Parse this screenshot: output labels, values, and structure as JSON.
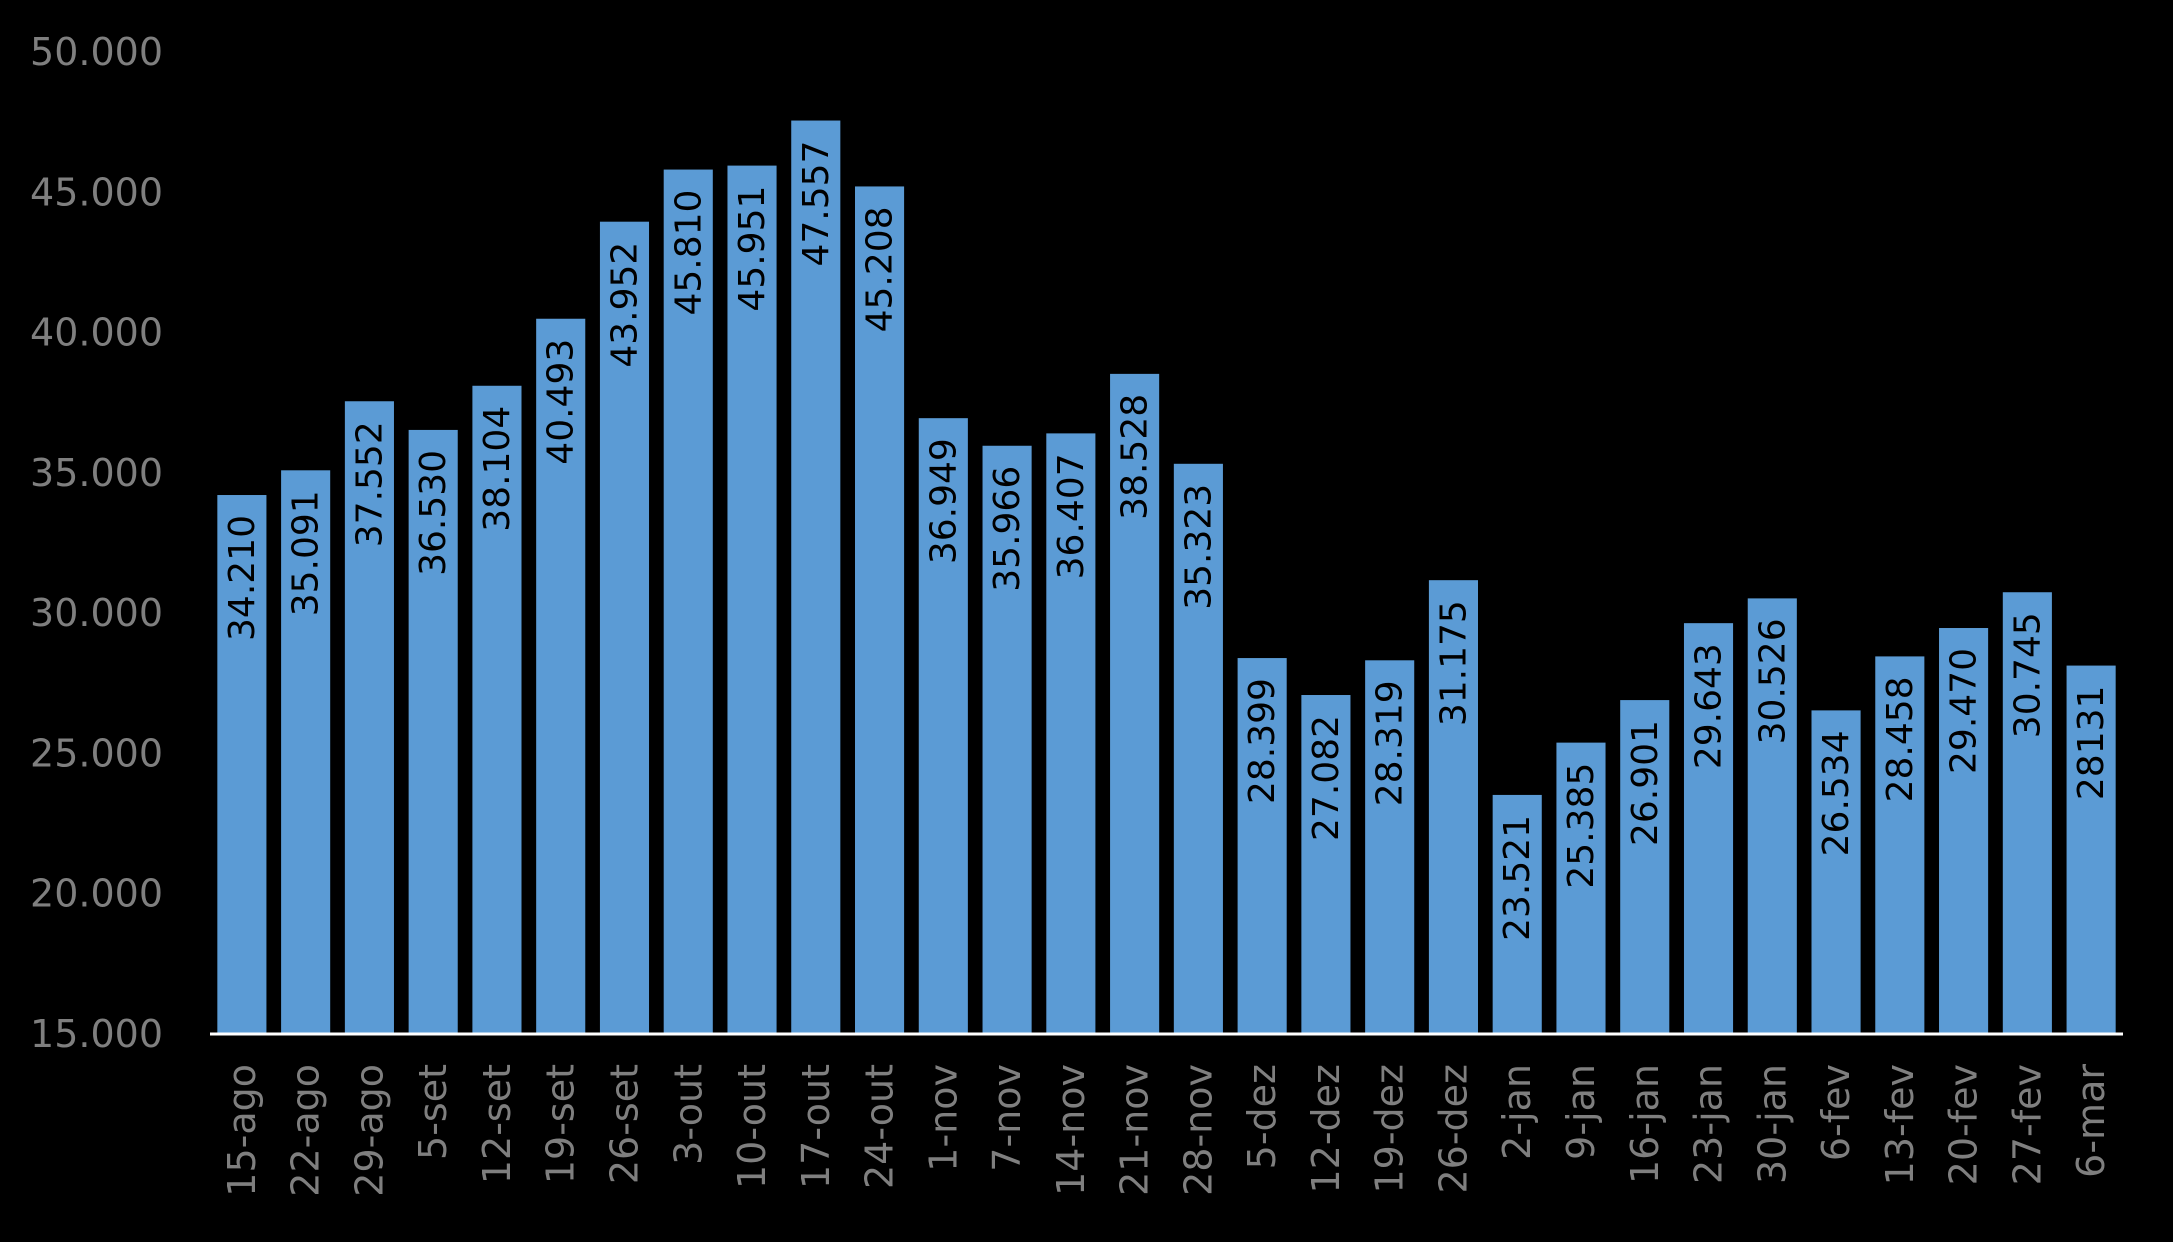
{
  "chart_data": {
    "type": "bar",
    "categories": [
      "15-ago",
      "22-ago",
      "29-ago",
      "5-set",
      "12-set",
      "19-set",
      "26-set",
      "3-out",
      "10-out",
      "17-out",
      "24-out",
      "1-nov",
      "7-nov",
      "14-nov",
      "21-nov",
      "28-nov",
      "5-dez",
      "12-dez",
      "19-dez",
      "26-dez",
      "2-jan",
      "9-jan",
      "16-jan",
      "23-jan",
      "30-jan",
      "6-fev",
      "13-fev",
      "20-fev",
      "27-fev",
      "6-mar"
    ],
    "values": [
      34210,
      35091,
      37552,
      36530,
      38104,
      40493,
      43952,
      45810,
      45951,
      47557,
      45208,
      36949,
      35966,
      36407,
      38528,
      35323,
      28399,
      27082,
      28319,
      31175,
      23521,
      25385,
      26901,
      29643,
      30526,
      26534,
      28458,
      29470,
      30745,
      28131
    ],
    "data_labels": [
      "34.210",
      "35.091",
      "37.552",
      "36.530",
      "38.104",
      "40.493",
      "43.952",
      "45.810",
      "45.951",
      "47.557",
      "45.208",
      "36.949",
      "35.966",
      "36.407",
      "38.528",
      "35.323",
      "28.399",
      "27.082",
      "28.319",
      "31.175",
      "23.521",
      "25.385",
      "26.901",
      "29.643",
      "30.526",
      "26.534",
      "28.458",
      "29.470",
      "30.745",
      "28131"
    ],
    "y_ticks": [
      "15.000",
      "20.000",
      "25.000",
      "30.000",
      "35.000",
      "40.000",
      "45.000",
      "50.000"
    ],
    "ylim": [
      15000,
      50000
    ],
    "title": "",
    "xlabel": "",
    "ylabel": "",
    "grid": false,
    "colors": {
      "bar": "#5b9bd5",
      "tick_text": "#7f7f7f",
      "label_text": "#000000",
      "background": "#000000",
      "axis": "#ffffff"
    }
  }
}
